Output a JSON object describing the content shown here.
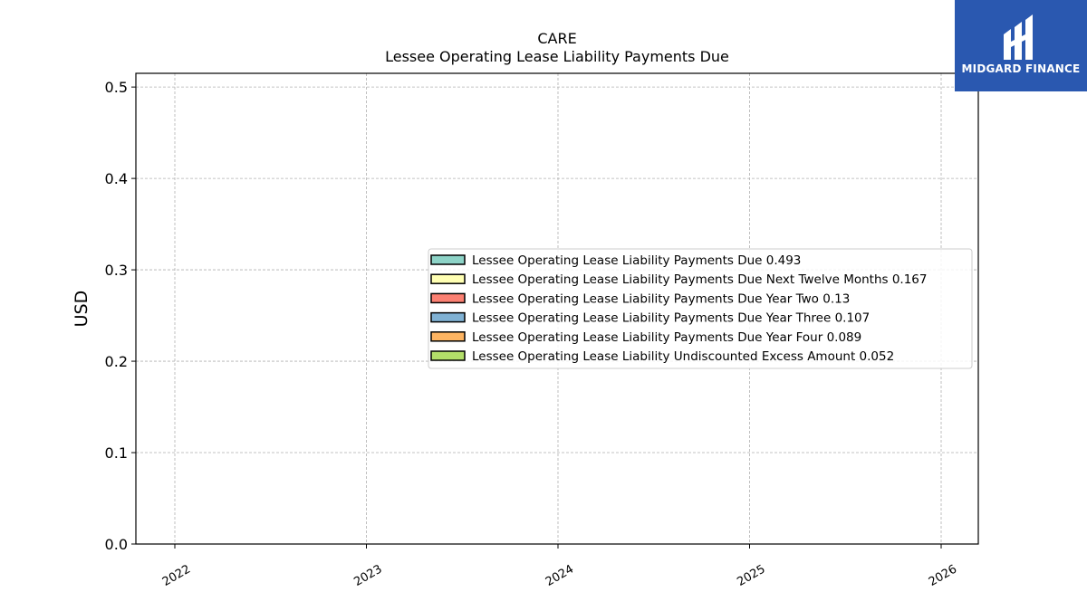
{
  "chart_data": {
    "type": "bar",
    "title": "CARE",
    "subtitle": "Lessee Operating Lease Liability Payments Due",
    "ylabel": "USD",
    "xlabel": "",
    "x_ticks": [
      "2022",
      "2023",
      "2024",
      "2025",
      "2026"
    ],
    "y_ticks": [
      "0.0",
      "0.1",
      "0.2",
      "0.3",
      "0.4",
      "0.5"
    ],
    "ylim": [
      0,
      0.515
    ],
    "grid": true,
    "legend_position": "center-right",
    "series": [
      {
        "name": "Lessee Operating Lease Liability Payments Due",
        "value": 0.493,
        "color": "#8dd3c7"
      },
      {
        "name": "Lessee Operating Lease Liability Payments Due Next Twelve Months",
        "value": 0.167,
        "color": "#ffffb3"
      },
      {
        "name": "Lessee Operating Lease Liability Payments Due Year Two",
        "value": 0.13,
        "color": "#fb8072"
      },
      {
        "name": "Lessee Operating Lease Liability Payments Due Year Three",
        "value": 0.107,
        "color": "#80b1d3"
      },
      {
        "name": "Lessee Operating Lease Liability Payments Due Year Four",
        "value": 0.089,
        "color": "#fdb462"
      },
      {
        "name": "Lessee Operating Lease Liability Undiscounted Excess Amount",
        "value": 0.052,
        "color": "#b3de69"
      }
    ]
  },
  "logo": {
    "text": "MIDGARD FINANCE"
  }
}
